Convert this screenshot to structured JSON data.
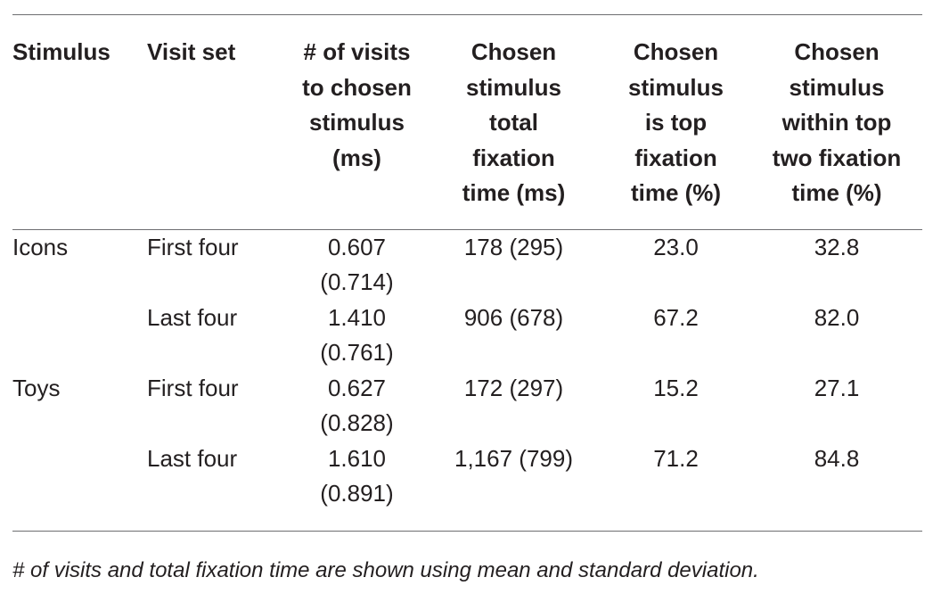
{
  "table": {
    "headers": [
      "Stimulus",
      "Visit set",
      "# of visits\nto chosen\nstimulus\n(ms)",
      "Chosen\nstimulus\ntotal\nfixation\ntime (ms)",
      "Chosen\nstimulus\nis top\nfixation\ntime (%)",
      "Chosen\nstimulus\nwithin top\ntwo fixation\ntime (%)"
    ],
    "rows": [
      [
        "Icons",
        "First four",
        "0.607\n(0.714)",
        "178 (295)",
        "23.0",
        "32.8"
      ],
      [
        "",
        "Last four",
        "1.410\n(0.761)",
        "906 (678)",
        "67.2",
        "82.0"
      ],
      [
        "Toys",
        "First four",
        "0.627\n(0.828)",
        "172 (297)",
        "15.2",
        "27.1"
      ],
      [
        "",
        "Last four",
        "1.610\n(0.891)",
        "1,167 (799)",
        "71.2",
        "84.8"
      ]
    ]
  },
  "footnote": "# of visits and total fixation time are shown using mean and standard deviation."
}
